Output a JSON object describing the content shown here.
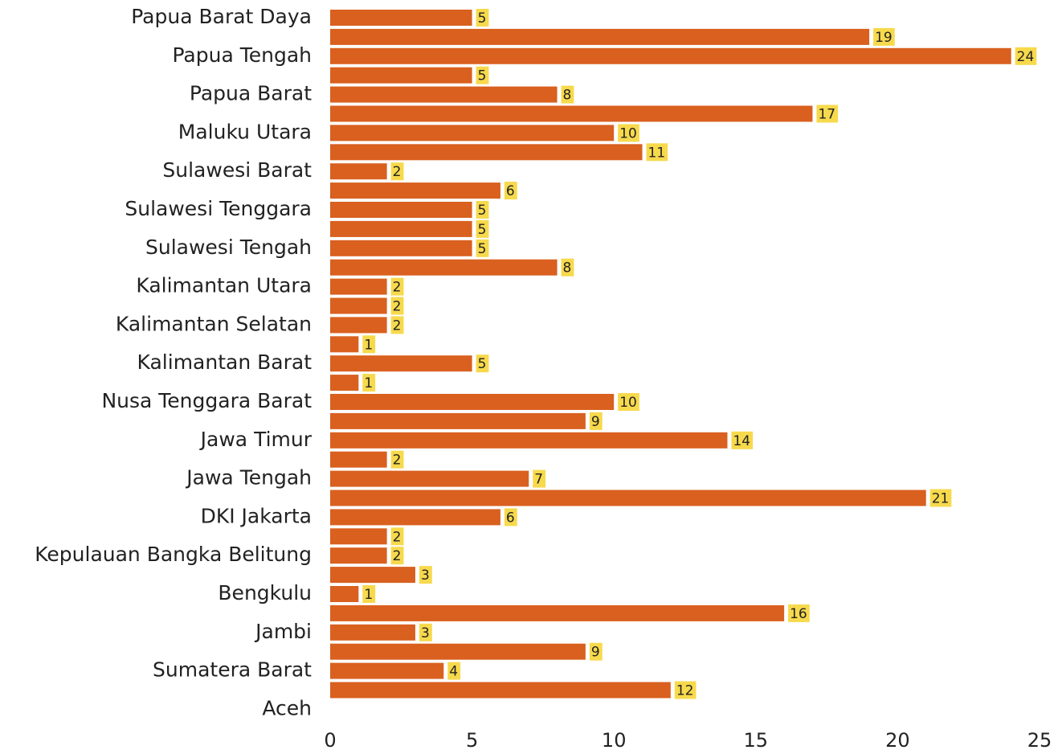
{
  "chart_data": {
    "type": "barh",
    "categories": [
      "Papua Barat Daya",
      null,
      "Papua Tengah",
      null,
      "Papua Barat",
      null,
      "Maluku Utara",
      null,
      "Sulawesi Barat",
      null,
      "Sulawesi Tenggara",
      null,
      "Sulawesi Tengah",
      null,
      "Kalimantan Utara",
      null,
      "Kalimantan Selatan",
      null,
      "Kalimantan Barat",
      null,
      "Nusa Tenggara Barat",
      null,
      "Jawa Timur",
      null,
      "Jawa Tengah",
      null,
      "DKI Jakarta",
      null,
      "Kepulauan Bangka Belitung",
      null,
      "Bengkulu",
      null,
      "Jambi",
      null,
      "Sumatera Barat",
      null,
      "Aceh"
    ],
    "values": [
      5,
      19,
      24,
      5,
      8,
      17,
      10,
      11,
      2,
      6,
      5,
      5,
      5,
      8,
      2,
      2,
      2,
      1,
      5,
      1,
      10,
      9,
      14,
      2,
      7,
      21,
      6,
      2,
      2,
      3,
      1,
      16,
      3,
      9,
      4,
      12,
      null
    ],
    "color": "#d9601f",
    "label_color": "#f7d94c",
    "xlim": [
      0,
      25
    ],
    "xticks": [
      0,
      5,
      10,
      15,
      20,
      25
    ],
    "grid": false
  }
}
